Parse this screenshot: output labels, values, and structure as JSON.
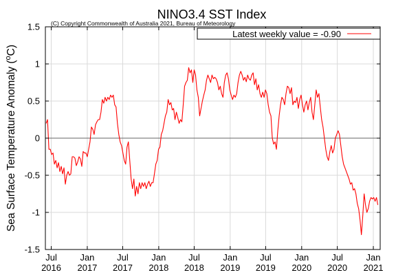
{
  "chart_data": {
    "type": "line",
    "title": "NINO3.4 SST Index",
    "subtitle": "(C) Copyright Commonwealth of Australia 2021, Bureau of Meteorology",
    "ylabel": "Sea Surface Temperature Anomaly (",
    "ylabel_superscript": "o",
    "ylabel_unit": "C)",
    "xlabel": "",
    "ylim": [
      -1.5,
      1.5
    ],
    "xlim": [
      "2016-06-01",
      "2021-02-05"
    ],
    "y_ticks": [
      {
        "value": 1.5,
        "label": "1.5"
      },
      {
        "value": 1,
        "label": "1"
      },
      {
        "value": 0.5,
        "label": "0.5"
      },
      {
        "value": 0,
        "label": "0"
      },
      {
        "value": -0.5,
        "label": "-0.5"
      },
      {
        "value": -1,
        "label": "-1"
      },
      {
        "value": -1.5,
        "label": "-1.5"
      }
    ],
    "x_ticks": [
      {
        "date": "2016-07-01",
        "month": "Jul",
        "year": "2016"
      },
      {
        "date": "2017-01-01",
        "month": "Jan",
        "year": "2017"
      },
      {
        "date": "2017-07-01",
        "month": "Jul",
        "year": "2017"
      },
      {
        "date": "2018-01-01",
        "month": "Jan",
        "year": "2018"
      },
      {
        "date": "2018-07-01",
        "month": "Jul",
        "year": "2018"
      },
      {
        "date": "2019-01-01",
        "month": "Jan",
        "year": "2019"
      },
      {
        "date": "2019-07-01",
        "month": "Jul",
        "year": "2019"
      },
      {
        "date": "2020-01-01",
        "month": "Jan",
        "year": "2020"
      },
      {
        "date": "2020-07-01",
        "month": "Jul",
        "year": "2020"
      },
      {
        "date": "2021-01-01",
        "month": "Jan",
        "year": "2021"
      }
    ],
    "grid": true,
    "zero_line": true,
    "legend": {
      "position": "top-right",
      "label": "Latest weekly value = -0.90"
    },
    "series": [
      {
        "color": "#ff0000",
        "points": [
          [
            "2016-06-05",
            0.2
          ],
          [
            "2016-06-12",
            0.25
          ],
          [
            "2016-06-19",
            -0.15
          ],
          [
            "2016-06-26",
            -0.15
          ],
          [
            "2016-07-03",
            -0.22
          ],
          [
            "2016-07-10",
            -0.2
          ],
          [
            "2016-07-17",
            -0.35
          ],
          [
            "2016-07-24",
            -0.3
          ],
          [
            "2016-07-31",
            -0.4
          ],
          [
            "2016-08-07",
            -0.33
          ],
          [
            "2016-08-14",
            -0.45
          ],
          [
            "2016-08-21",
            -0.38
          ],
          [
            "2016-08-28",
            -0.48
          ],
          [
            "2016-09-04",
            -0.4
          ],
          [
            "2016-09-11",
            -0.62
          ],
          [
            "2016-09-18",
            -0.5
          ],
          [
            "2016-09-25",
            -0.45
          ],
          [
            "2016-10-02",
            -0.5
          ],
          [
            "2016-10-09",
            -0.48
          ],
          [
            "2016-10-16",
            -0.25
          ],
          [
            "2016-10-23",
            -0.25
          ],
          [
            "2016-10-30",
            -0.27
          ],
          [
            "2016-11-06",
            -0.37
          ],
          [
            "2016-11-13",
            -0.32
          ],
          [
            "2016-11-20",
            -0.25
          ],
          [
            "2016-11-27",
            -0.28
          ],
          [
            "2016-12-04",
            -0.38
          ],
          [
            "2016-12-11",
            -0.18
          ],
          [
            "2016-12-18",
            -0.2
          ],
          [
            "2016-12-25",
            -0.2
          ],
          [
            "2017-01-01",
            -0.25
          ],
          [
            "2017-01-08",
            -0.15
          ],
          [
            "2017-01-15",
            -0.05
          ],
          [
            "2017-01-22",
            0.15
          ],
          [
            "2017-01-29",
            0.12
          ],
          [
            "2017-02-05",
            0.05
          ],
          [
            "2017-02-12",
            0.18
          ],
          [
            "2017-02-19",
            0.22
          ],
          [
            "2017-02-26",
            0.25
          ],
          [
            "2017-03-05",
            0.25
          ],
          [
            "2017-03-12",
            0.35
          ],
          [
            "2017-03-19",
            0.52
          ],
          [
            "2017-03-26",
            0.47
          ],
          [
            "2017-04-02",
            0.55
          ],
          [
            "2017-04-09",
            0.5
          ],
          [
            "2017-04-16",
            0.55
          ],
          [
            "2017-04-23",
            0.52
          ],
          [
            "2017-04-30",
            0.58
          ],
          [
            "2017-05-07",
            0.55
          ],
          [
            "2017-05-14",
            0.58
          ],
          [
            "2017-05-21",
            0.45
          ],
          [
            "2017-05-28",
            0.42
          ],
          [
            "2017-06-04",
            0.2
          ],
          [
            "2017-06-11",
            0.05
          ],
          [
            "2017-06-18",
            -0.05
          ],
          [
            "2017-06-25",
            -0.1
          ],
          [
            "2017-07-02",
            -0.2
          ],
          [
            "2017-07-09",
            -0.3
          ],
          [
            "2017-07-16",
            -0.35
          ],
          [
            "2017-07-23",
            -0.12
          ],
          [
            "2017-07-30",
            -0.05
          ],
          [
            "2017-08-06",
            -0.3
          ],
          [
            "2017-08-13",
            -0.55
          ],
          [
            "2017-08-20",
            -0.68
          ],
          [
            "2017-08-27",
            -0.55
          ],
          [
            "2017-09-03",
            -0.78
          ],
          [
            "2017-09-10",
            -0.65
          ],
          [
            "2017-09-17",
            -0.75
          ],
          [
            "2017-09-24",
            -0.6
          ],
          [
            "2017-10-01",
            -0.68
          ],
          [
            "2017-10-08",
            -0.6
          ],
          [
            "2017-10-15",
            -0.65
          ],
          [
            "2017-10-22",
            -0.6
          ],
          [
            "2017-10-29",
            -0.68
          ],
          [
            "2017-11-05",
            -0.62
          ],
          [
            "2017-11-12",
            -0.58
          ],
          [
            "2017-11-19",
            -0.65
          ],
          [
            "2017-11-26",
            -0.6
          ],
          [
            "2017-12-03",
            -0.6
          ],
          [
            "2017-12-10",
            -0.48
          ],
          [
            "2017-12-17",
            -0.35
          ],
          [
            "2017-12-24",
            -0.3
          ],
          [
            "2017-12-31",
            -0.15
          ],
          [
            "2018-01-07",
            -0.12
          ],
          [
            "2018-01-14",
            0.05
          ],
          [
            "2018-01-21",
            0.1
          ],
          [
            "2018-01-28",
            0.2
          ],
          [
            "2018-02-04",
            0.3
          ],
          [
            "2018-02-11",
            0.35
          ],
          [
            "2018-02-18",
            0.52
          ],
          [
            "2018-02-25",
            0.45
          ],
          [
            "2018-03-04",
            0.48
          ],
          [
            "2018-03-11",
            0.38
          ],
          [
            "2018-03-18",
            0.4
          ],
          [
            "2018-03-25",
            0.25
          ],
          [
            "2018-04-01",
            0.35
          ],
          [
            "2018-04-08",
            0.28
          ],
          [
            "2018-04-15",
            0.2
          ],
          [
            "2018-04-22",
            0.25
          ],
          [
            "2018-04-29",
            0.22
          ],
          [
            "2018-05-06",
            0.45
          ],
          [
            "2018-05-13",
            0.7
          ],
          [
            "2018-05-20",
            0.75
          ],
          [
            "2018-05-27",
            0.78
          ],
          [
            "2018-06-03",
            0.95
          ],
          [
            "2018-06-10",
            0.88
          ],
          [
            "2018-06-17",
            0.92
          ],
          [
            "2018-06-24",
            0.75
          ],
          [
            "2018-07-01",
            0.92
          ],
          [
            "2018-07-08",
            0.85
          ],
          [
            "2018-07-15",
            0.65
          ],
          [
            "2018-07-22",
            0.55
          ],
          [
            "2018-07-29",
            0.3
          ],
          [
            "2018-08-05",
            0.4
          ],
          [
            "2018-08-12",
            0.5
          ],
          [
            "2018-08-19",
            0.58
          ],
          [
            "2018-08-26",
            0.65
          ],
          [
            "2018-09-02",
            0.78
          ],
          [
            "2018-09-09",
            0.85
          ],
          [
            "2018-09-16",
            0.8
          ],
          [
            "2018-09-23",
            0.75
          ],
          [
            "2018-09-30",
            0.85
          ],
          [
            "2018-10-07",
            0.8
          ],
          [
            "2018-10-14",
            0.82
          ],
          [
            "2018-10-21",
            0.8
          ],
          [
            "2018-10-28",
            0.75
          ],
          [
            "2018-11-04",
            0.65
          ],
          [
            "2018-11-11",
            0.7
          ],
          [
            "2018-11-18",
            0.6
          ],
          [
            "2018-11-25",
            0.55
          ],
          [
            "2018-12-02",
            0.75
          ],
          [
            "2018-12-09",
            0.85
          ],
          [
            "2018-12-16",
            0.88
          ],
          [
            "2018-12-23",
            0.8
          ],
          [
            "2018-12-30",
            0.65
          ],
          [
            "2019-01-06",
            0.58
          ],
          [
            "2019-01-13",
            0.52
          ],
          [
            "2019-01-20",
            0.58
          ],
          [
            "2019-01-27",
            0.55
          ],
          [
            "2019-02-03",
            0.6
          ],
          [
            "2019-02-10",
            0.75
          ],
          [
            "2019-02-17",
            0.85
          ],
          [
            "2019-02-24",
            0.9
          ],
          [
            "2019-03-03",
            0.85
          ],
          [
            "2019-03-10",
            0.78
          ],
          [
            "2019-03-17",
            0.82
          ],
          [
            "2019-03-24",
            0.76
          ],
          [
            "2019-03-31",
            0.85
          ],
          [
            "2019-04-07",
            0.8
          ],
          [
            "2019-04-14",
            0.78
          ],
          [
            "2019-04-21",
            0.85
          ],
          [
            "2019-04-28",
            0.88
          ],
          [
            "2019-05-05",
            0.72
          ],
          [
            "2019-05-12",
            0.8
          ],
          [
            "2019-05-19",
            0.65
          ],
          [
            "2019-05-26",
            0.72
          ],
          [
            "2019-06-02",
            0.6
          ],
          [
            "2019-06-09",
            0.55
          ],
          [
            "2019-06-16",
            0.62
          ],
          [
            "2019-06-23",
            0.55
          ],
          [
            "2019-06-30",
            0.65
          ],
          [
            "2019-07-07",
            0.6
          ],
          [
            "2019-07-14",
            0.45
          ],
          [
            "2019-07-21",
            0.35
          ],
          [
            "2019-07-28",
            0.3
          ],
          [
            "2019-08-04",
            0.0
          ],
          [
            "2019-08-11",
            -0.08
          ],
          [
            "2019-08-18",
            -0.05
          ],
          [
            "2019-08-25",
            -0.15
          ],
          [
            "2019-09-01",
            0.1
          ],
          [
            "2019-09-08",
            0.3
          ],
          [
            "2019-09-15",
            0.45
          ],
          [
            "2019-09-22",
            0.55
          ],
          [
            "2019-09-29",
            0.52
          ],
          [
            "2019-10-06",
            0.45
          ],
          [
            "2019-10-13",
            0.6
          ],
          [
            "2019-10-20",
            0.7
          ],
          [
            "2019-10-27",
            0.68
          ],
          [
            "2019-11-03",
            0.6
          ],
          [
            "2019-11-10",
            0.68
          ],
          [
            "2019-11-17",
            0.45
          ],
          [
            "2019-11-24",
            0.5
          ],
          [
            "2019-12-01",
            0.48
          ],
          [
            "2019-12-08",
            0.55
          ],
          [
            "2019-12-15",
            0.4
          ],
          [
            "2019-12-22",
            0.52
          ],
          [
            "2019-12-29",
            0.58
          ],
          [
            "2020-01-05",
            0.45
          ],
          [
            "2020-01-12",
            0.35
          ],
          [
            "2020-01-19",
            0.45
          ],
          [
            "2020-01-26",
            0.5
          ],
          [
            "2020-02-02",
            0.38
          ],
          [
            "2020-02-09",
            0.48
          ],
          [
            "2020-02-16",
            0.55
          ],
          [
            "2020-02-23",
            0.35
          ],
          [
            "2020-03-01",
            0.25
          ],
          [
            "2020-03-08",
            0.45
          ],
          [
            "2020-03-15",
            0.65
          ],
          [
            "2020-03-22",
            0.55
          ],
          [
            "2020-03-29",
            0.6
          ],
          [
            "2020-04-05",
            0.42
          ],
          [
            "2020-04-12",
            0.25
          ],
          [
            "2020-04-19",
            0.15
          ],
          [
            "2020-04-26",
            0.0
          ],
          [
            "2020-05-03",
            -0.15
          ],
          [
            "2020-05-10",
            -0.25
          ],
          [
            "2020-05-17",
            -0.3
          ],
          [
            "2020-05-24",
            -0.18
          ],
          [
            "2020-05-31",
            -0.1
          ],
          [
            "2020-06-07",
            -0.2
          ],
          [
            "2020-06-14",
            -0.15
          ],
          [
            "2020-06-21",
            0.0
          ],
          [
            "2020-06-28",
            0.05
          ],
          [
            "2020-07-05",
            0.1
          ],
          [
            "2020-07-12",
            0.05
          ],
          [
            "2020-07-19",
            -0.1
          ],
          [
            "2020-07-26",
            -0.25
          ],
          [
            "2020-08-02",
            -0.35
          ],
          [
            "2020-08-09",
            -0.4
          ],
          [
            "2020-08-16",
            -0.45
          ],
          [
            "2020-08-23",
            -0.5
          ],
          [
            "2020-08-30",
            -0.55
          ],
          [
            "2020-09-06",
            -0.62
          ],
          [
            "2020-09-13",
            -0.6
          ],
          [
            "2020-09-20",
            -0.7
          ],
          [
            "2020-09-27",
            -0.68
          ],
          [
            "2020-10-04",
            -0.75
          ],
          [
            "2020-10-11",
            -0.88
          ],
          [
            "2020-10-18",
            -0.95
          ],
          [
            "2020-10-25",
            -1.1
          ],
          [
            "2020-11-01",
            -1.3
          ],
          [
            "2020-11-08",
            -1.05
          ],
          [
            "2020-11-15",
            -0.75
          ],
          [
            "2020-11-22",
            -0.9
          ],
          [
            "2020-11-29",
            -1.0
          ],
          [
            "2020-12-06",
            -0.95
          ],
          [
            "2020-12-13",
            -0.85
          ],
          [
            "2020-12-20",
            -0.8
          ],
          [
            "2020-12-27",
            -0.82
          ],
          [
            "2021-01-03",
            -0.8
          ],
          [
            "2021-01-10",
            -0.85
          ],
          [
            "2021-01-17",
            -0.8
          ],
          [
            "2021-01-24",
            -0.9
          ]
        ]
      }
    ]
  }
}
